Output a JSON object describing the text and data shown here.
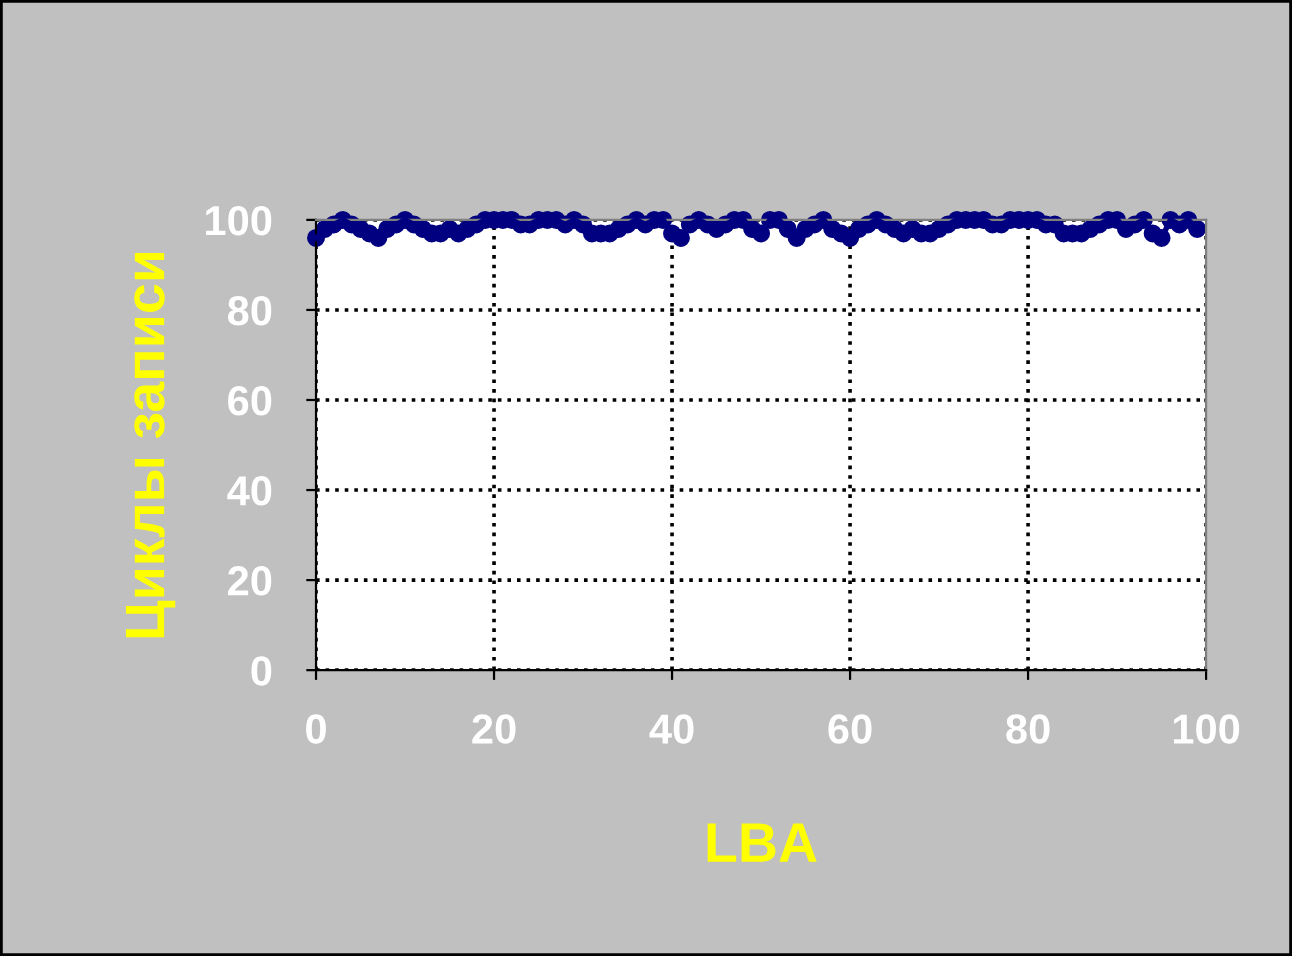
{
  "chart_data": {
    "type": "line",
    "xlabel": "LBA",
    "ylabel": "Циклы записи",
    "x": [
      0,
      1,
      2,
      3,
      4,
      5,
      6,
      7,
      8,
      9,
      10,
      11,
      12,
      13,
      14,
      15,
      16,
      17,
      18,
      19,
      20,
      21,
      22,
      23,
      24,
      25,
      26,
      27,
      28,
      29,
      30,
      31,
      32,
      33,
      34,
      35,
      36,
      37,
      38,
      39,
      40,
      41,
      42,
      43,
      44,
      45,
      46,
      47,
      48,
      49,
      50,
      51,
      52,
      53,
      54,
      55,
      56,
      57,
      58,
      59,
      60,
      61,
      62,
      63,
      64,
      65,
      66,
      67,
      68,
      69,
      70,
      71,
      72,
      73,
      74,
      75,
      76,
      77,
      78,
      79,
      80,
      81,
      82,
      83,
      84,
      85,
      86,
      87,
      88,
      89,
      90,
      91,
      92,
      93,
      94,
      95,
      96,
      97,
      98,
      99
    ],
    "series": [
      {
        "color": "#000080",
        "values": [
          96,
          98,
          99,
          100,
          99,
          98,
          97,
          96,
          98,
          99,
          100,
          99,
          98,
          97,
          97,
          98,
          97,
          98,
          99,
          100,
          100,
          100,
          100,
          99,
          99,
          100,
          100,
          100,
          99,
          100,
          99,
          97,
          97,
          97,
          98,
          99,
          100,
          99,
          100,
          100,
          97,
          96,
          99,
          100,
          99,
          98,
          99,
          100,
          100,
          98,
          97,
          100,
          100,
          98,
          96,
          98,
          99,
          100,
          98,
          97,
          96,
          98,
          99,
          100,
          99,
          98,
          97,
          98,
          97,
          97,
          98,
          99,
          100,
          100,
          100,
          100,
          99,
          99,
          100,
          100,
          100,
          100,
          99,
          99,
          97,
          97,
          97,
          98,
          99,
          100,
          100,
          98,
          99,
          100,
          97,
          96,
          100,
          99,
          100,
          98
        ]
      }
    ],
    "xlim": [
      0,
      100
    ],
    "ylim": [
      0,
      100
    ],
    "xticks": [
      0,
      20,
      40,
      60,
      80,
      100
    ],
    "yticks": [
      0,
      20,
      40,
      60,
      80,
      100
    ],
    "grid": true,
    "marker": "circle",
    "line_style": "solid",
    "legend": false
  }
}
